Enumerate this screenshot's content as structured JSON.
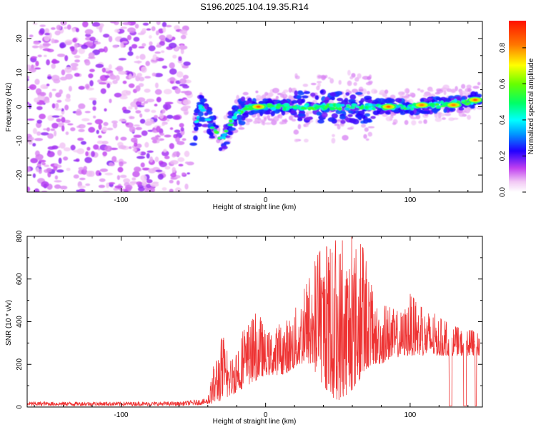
{
  "title": "S196.2025.104.19.35.R14",
  "chart_data": [
    {
      "type": "heatmap",
      "xlabel": "Height of straight line (km)",
      "ylabel": "Frequency (Hz)",
      "xlim": [
        -165,
        150
      ],
      "ylim": [
        -25,
        25
      ],
      "xticks": [
        -100,
        0,
        100
      ],
      "yticks": [
        -20,
        -10,
        0,
        10,
        20
      ],
      "colorbar": {
        "label": "Normalized spectral amplitude",
        "range": [
          0,
          0.95
        ],
        "ticks": [
          0.0,
          0.2,
          0.4,
          0.6,
          0.8
        ]
      },
      "noise_region_x": [
        -165,
        -52
      ],
      "ridge": [
        {
          "x": -50,
          "y": -8
        },
        {
          "x": -45,
          "y": 0
        },
        {
          "x": -38,
          "y": -5
        },
        {
          "x": -30,
          "y": -10
        },
        {
          "x": -22,
          "y": -3
        },
        {
          "x": -12,
          "y": 0
        },
        {
          "x": 0,
          "y": 0
        },
        {
          "x": 20,
          "y": 0
        },
        {
          "x": 40,
          "y": 0
        },
        {
          "x": 60,
          "y": 0
        },
        {
          "x": 80,
          "y": 0
        },
        {
          "x": 100,
          "y": 0
        },
        {
          "x": 120,
          "y": 0.5
        },
        {
          "x": 148,
          "y": 2
        }
      ],
      "peaks": [
        {
          "x": -5,
          "y": 0,
          "amplitude": 0.9
        },
        {
          "x": 85,
          "y": 0,
          "amplitude": 0.9
        },
        {
          "x": 108,
          "y": 0.5,
          "amplitude": 0.85
        },
        {
          "x": 130,
          "y": 0.5,
          "amplitude": 0.85
        },
        {
          "x": 145,
          "y": 2,
          "amplitude": 0.9
        }
      ]
    },
    {
      "type": "line",
      "xlabel": "Height of straight line (km)",
      "ylabel": "SNR (10 * v/v)",
      "xlim": [
        -165,
        150
      ],
      "ylim": [
        0,
        800
      ],
      "xticks": [
        -100,
        0,
        100
      ],
      "yticks": [
        0,
        200,
        400,
        600,
        800
      ],
      "series": [
        {
          "color": "#ee3333",
          "x": [
            -165,
            -140,
            -120,
            -100,
            -80,
            -60,
            -40,
            -35,
            -30,
            -25,
            -20,
            -15,
            -10,
            -5,
            0,
            5,
            10,
            15,
            20,
            25,
            30,
            35,
            40,
            45,
            50,
            55,
            60,
            65,
            70,
            75,
            80,
            85,
            90,
            95,
            100,
            105,
            110,
            115,
            120,
            125,
            130,
            135,
            140,
            145,
            148
          ],
          "y_min": [
            5,
            5,
            5,
            5,
            5,
            5,
            10,
            20,
            30,
            50,
            70,
            90,
            110,
            130,
            150,
            150,
            150,
            160,
            180,
            200,
            200,
            150,
            100,
            50,
            30,
            50,
            80,
            120,
            180,
            200,
            200,
            220,
            230,
            240,
            240,
            240,
            240,
            240,
            240,
            240,
            240,
            240,
            240,
            240,
            240
          ],
          "y_max": [
            25,
            25,
            25,
            25,
            25,
            25,
            40,
            240,
            350,
            220,
            320,
            360,
            400,
            470,
            350,
            370,
            390,
            420,
            460,
            530,
            600,
            700,
            760,
            740,
            800,
            770,
            800,
            770,
            720,
            500,
            480,
            470,
            460,
            450,
            540,
            480,
            460,
            450,
            420,
            400,
            380,
            370,
            360,
            360,
            350
          ]
        }
      ]
    }
  ]
}
